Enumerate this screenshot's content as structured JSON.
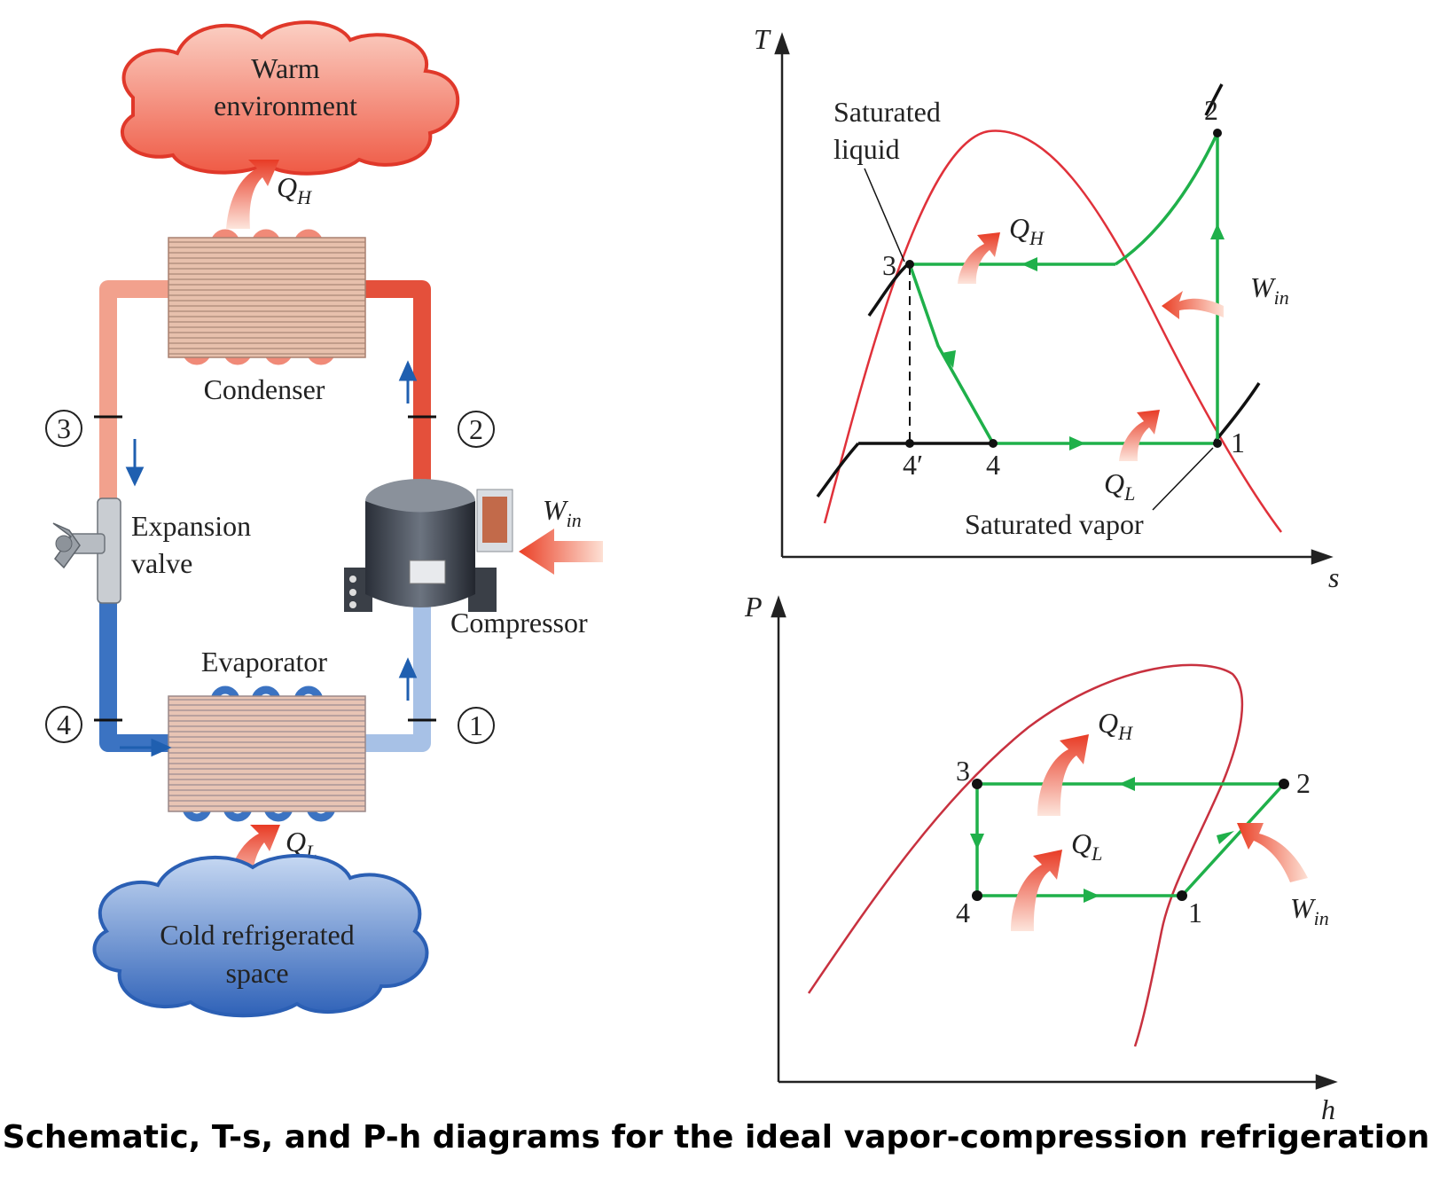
{
  "caption": "Schematic, T-s, and P-h diagrams for the ideal vapor-compression refrigeration",
  "colors": {
    "warm_pipe": "#f4a08e",
    "hot_pipe": "#e8503a",
    "cold_pipe": "#3f78c4",
    "light_cold_pipe": "#a9c3e6",
    "dome": "#e0313a",
    "cycle": "#1fb04a",
    "heat_arrow": "#ef5a3c",
    "flow_arrow": "#1f5fb0"
  },
  "schematic": {
    "warm_env_line1": "Warm",
    "warm_env_line2": "environment",
    "cold_space_line1": "Cold refrigerated",
    "cold_space_line2": "space",
    "qh_main": "Q",
    "qh_sub": "H",
    "ql_main": "Q",
    "ql_sub": "L",
    "win_main": "W",
    "win_sub": "in",
    "condenser": "Condenser",
    "evaporator": "Evaporator",
    "expansion_line1": "Expansion",
    "expansion_line2": "valve",
    "compressor": "Compressor",
    "state1": "1",
    "state2": "2",
    "state3": "3",
    "state4": "4"
  },
  "ts_diagram": {
    "y_axis": "T",
    "x_axis": "s",
    "sat_liquid_line1": "Saturated",
    "sat_liquid_line2": "liquid",
    "sat_vapor": "Saturated vapor",
    "qh_main": "Q",
    "qh_sub": "H",
    "ql_main": "Q",
    "ql_sub": "L",
    "win_main": "W",
    "win_sub": "in",
    "pt1": "1",
    "pt2": "2",
    "pt3": "3",
    "pt4": "4",
    "pt4p": "4′"
  },
  "ph_diagram": {
    "y_axis": "P",
    "x_axis": "h",
    "qh_main": "Q",
    "qh_sub": "H",
    "ql_main": "Q",
    "ql_sub": "L",
    "win_main": "W",
    "win_sub": "in",
    "pt1": "1",
    "pt2": "2",
    "pt3": "3",
    "pt4": "4"
  }
}
